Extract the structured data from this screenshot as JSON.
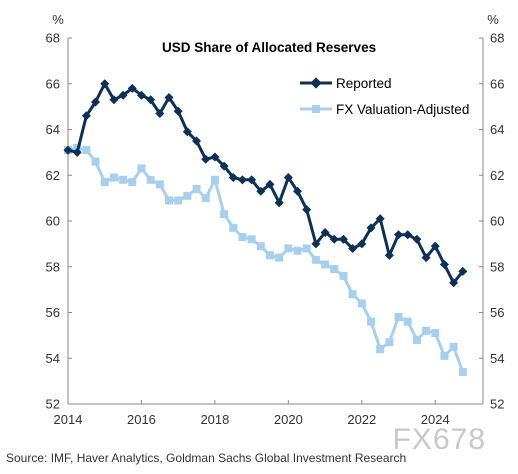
{
  "colors": {
    "reported": "#0e2f56",
    "adjusted": "#a8d0ee",
    "axis": "#888888",
    "text": "#333333"
  },
  "source": "Source: IMF, Haver Analytics, Goldman Sachs Global Investment Research",
  "watermark": "FX678",
  "chart_data": {
    "type": "line",
    "title": "USD Share of Allocated Reserves",
    "ylabel_left": "%",
    "ylabel_right": "%",
    "ylim": [
      52,
      68
    ],
    "y_ticks": [
      "52",
      "54",
      "56",
      "58",
      "60",
      "62",
      "64",
      "66",
      "68"
    ],
    "xlim": [
      2014,
      2025.3
    ],
    "x_ticks": [
      "2014",
      "2016",
      "2018",
      "2020",
      "2022",
      "2024"
    ],
    "grid": false,
    "legend_position": "top-right",
    "x": [
      2014.0,
      2014.25,
      2014.5,
      2014.75,
      2015.0,
      2015.25,
      2015.5,
      2015.75,
      2016.0,
      2016.25,
      2016.5,
      2016.75,
      2017.0,
      2017.25,
      2017.5,
      2017.75,
      2018.0,
      2018.25,
      2018.5,
      2018.75,
      2019.0,
      2019.25,
      2019.5,
      2019.75,
      2020.0,
      2020.25,
      2020.5,
      2020.75,
      2021.0,
      2021.25,
      2021.5,
      2021.75,
      2022.0,
      2022.25,
      2022.5,
      2022.75,
      2023.0,
      2023.25,
      2023.5,
      2023.75,
      2024.0,
      2024.25,
      2024.5,
      2024.75
    ],
    "series": [
      {
        "name": "Reported",
        "values": [
          63.1,
          63.0,
          64.6,
          65.2,
          66.0,
          65.3,
          65.5,
          65.8,
          65.5,
          65.3,
          64.7,
          65.4,
          64.8,
          63.9,
          63.5,
          62.7,
          62.8,
          62.4,
          61.9,
          61.8,
          61.8,
          61.3,
          61.6,
          60.8,
          61.9,
          61.3,
          60.5,
          59.0,
          59.5,
          59.2,
          59.2,
          58.8,
          59.0,
          59.7,
          60.1,
          58.5,
          59.4,
          59.4,
          59.2,
          58.4,
          58.9,
          58.1,
          57.3,
          57.8
        ]
      },
      {
        "name": "FX Valuation-Adjusted",
        "values": [
          63.1,
          63.2,
          63.1,
          62.6,
          61.7,
          61.9,
          61.8,
          61.7,
          62.3,
          61.8,
          61.6,
          60.9,
          60.9,
          61.1,
          61.4,
          61.0,
          61.8,
          60.3,
          59.7,
          59.3,
          59.2,
          58.9,
          58.5,
          58.4,
          58.8,
          58.7,
          58.8,
          58.3,
          58.1,
          57.9,
          57.6,
          56.8,
          56.4,
          55.6,
          54.4,
          54.7,
          55.8,
          55.6,
          54.8,
          55.2,
          55.1,
          54.1,
          54.5,
          53.4
        ]
      }
    ]
  }
}
